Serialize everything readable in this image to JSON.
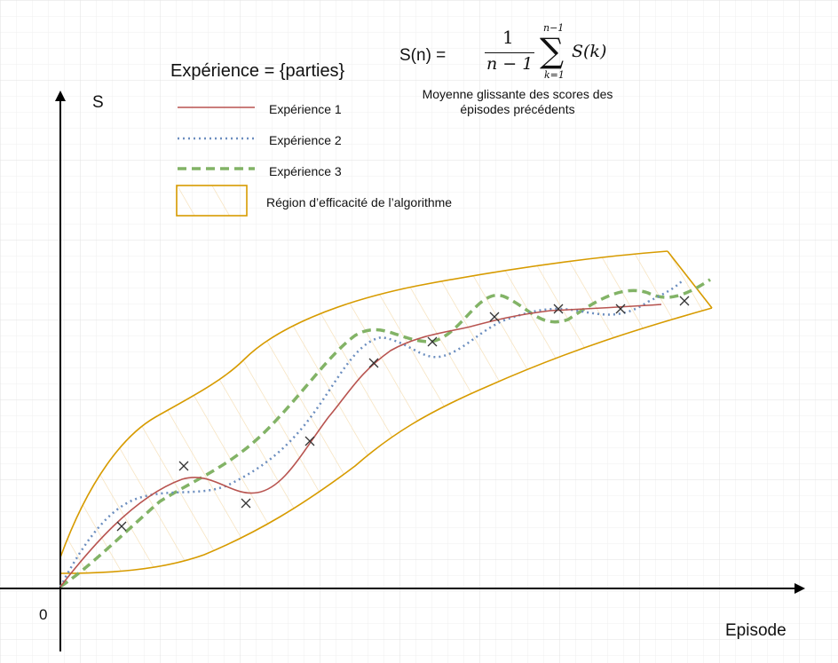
{
  "header": {
    "title": "Expérience = {parties}"
  },
  "axes": {
    "y_label": "S",
    "x_label": "Episode",
    "origin_label": "0"
  },
  "legend": {
    "items": [
      {
        "label": "Expérience 1",
        "color": "#b85450",
        "style": "solid"
      },
      {
        "label": "Expérience 2",
        "color": "#6c8ebf",
        "style": "dotted"
      },
      {
        "label": "Expérience 3",
        "color": "#82b366",
        "style": "dashed"
      },
      {
        "label": "Région d’efficacité de l’algorithme",
        "color": "#d79b00",
        "style": "hatched-region"
      }
    ]
  },
  "formula": {
    "lhs": "S(n) =",
    "numerator": "1",
    "denominator": "n − 1",
    "sum_upper": "n−1",
    "sum_lower": "k=1",
    "term": "S(k)",
    "caption": "Moyenne glissante des scores des épisodes précédents"
  },
  "colors": {
    "grid": "#e6e6e6",
    "axis": "#000000",
    "region": "#d79b00",
    "region_hatch": "#f5deb3",
    "marker": "#333333"
  }
}
